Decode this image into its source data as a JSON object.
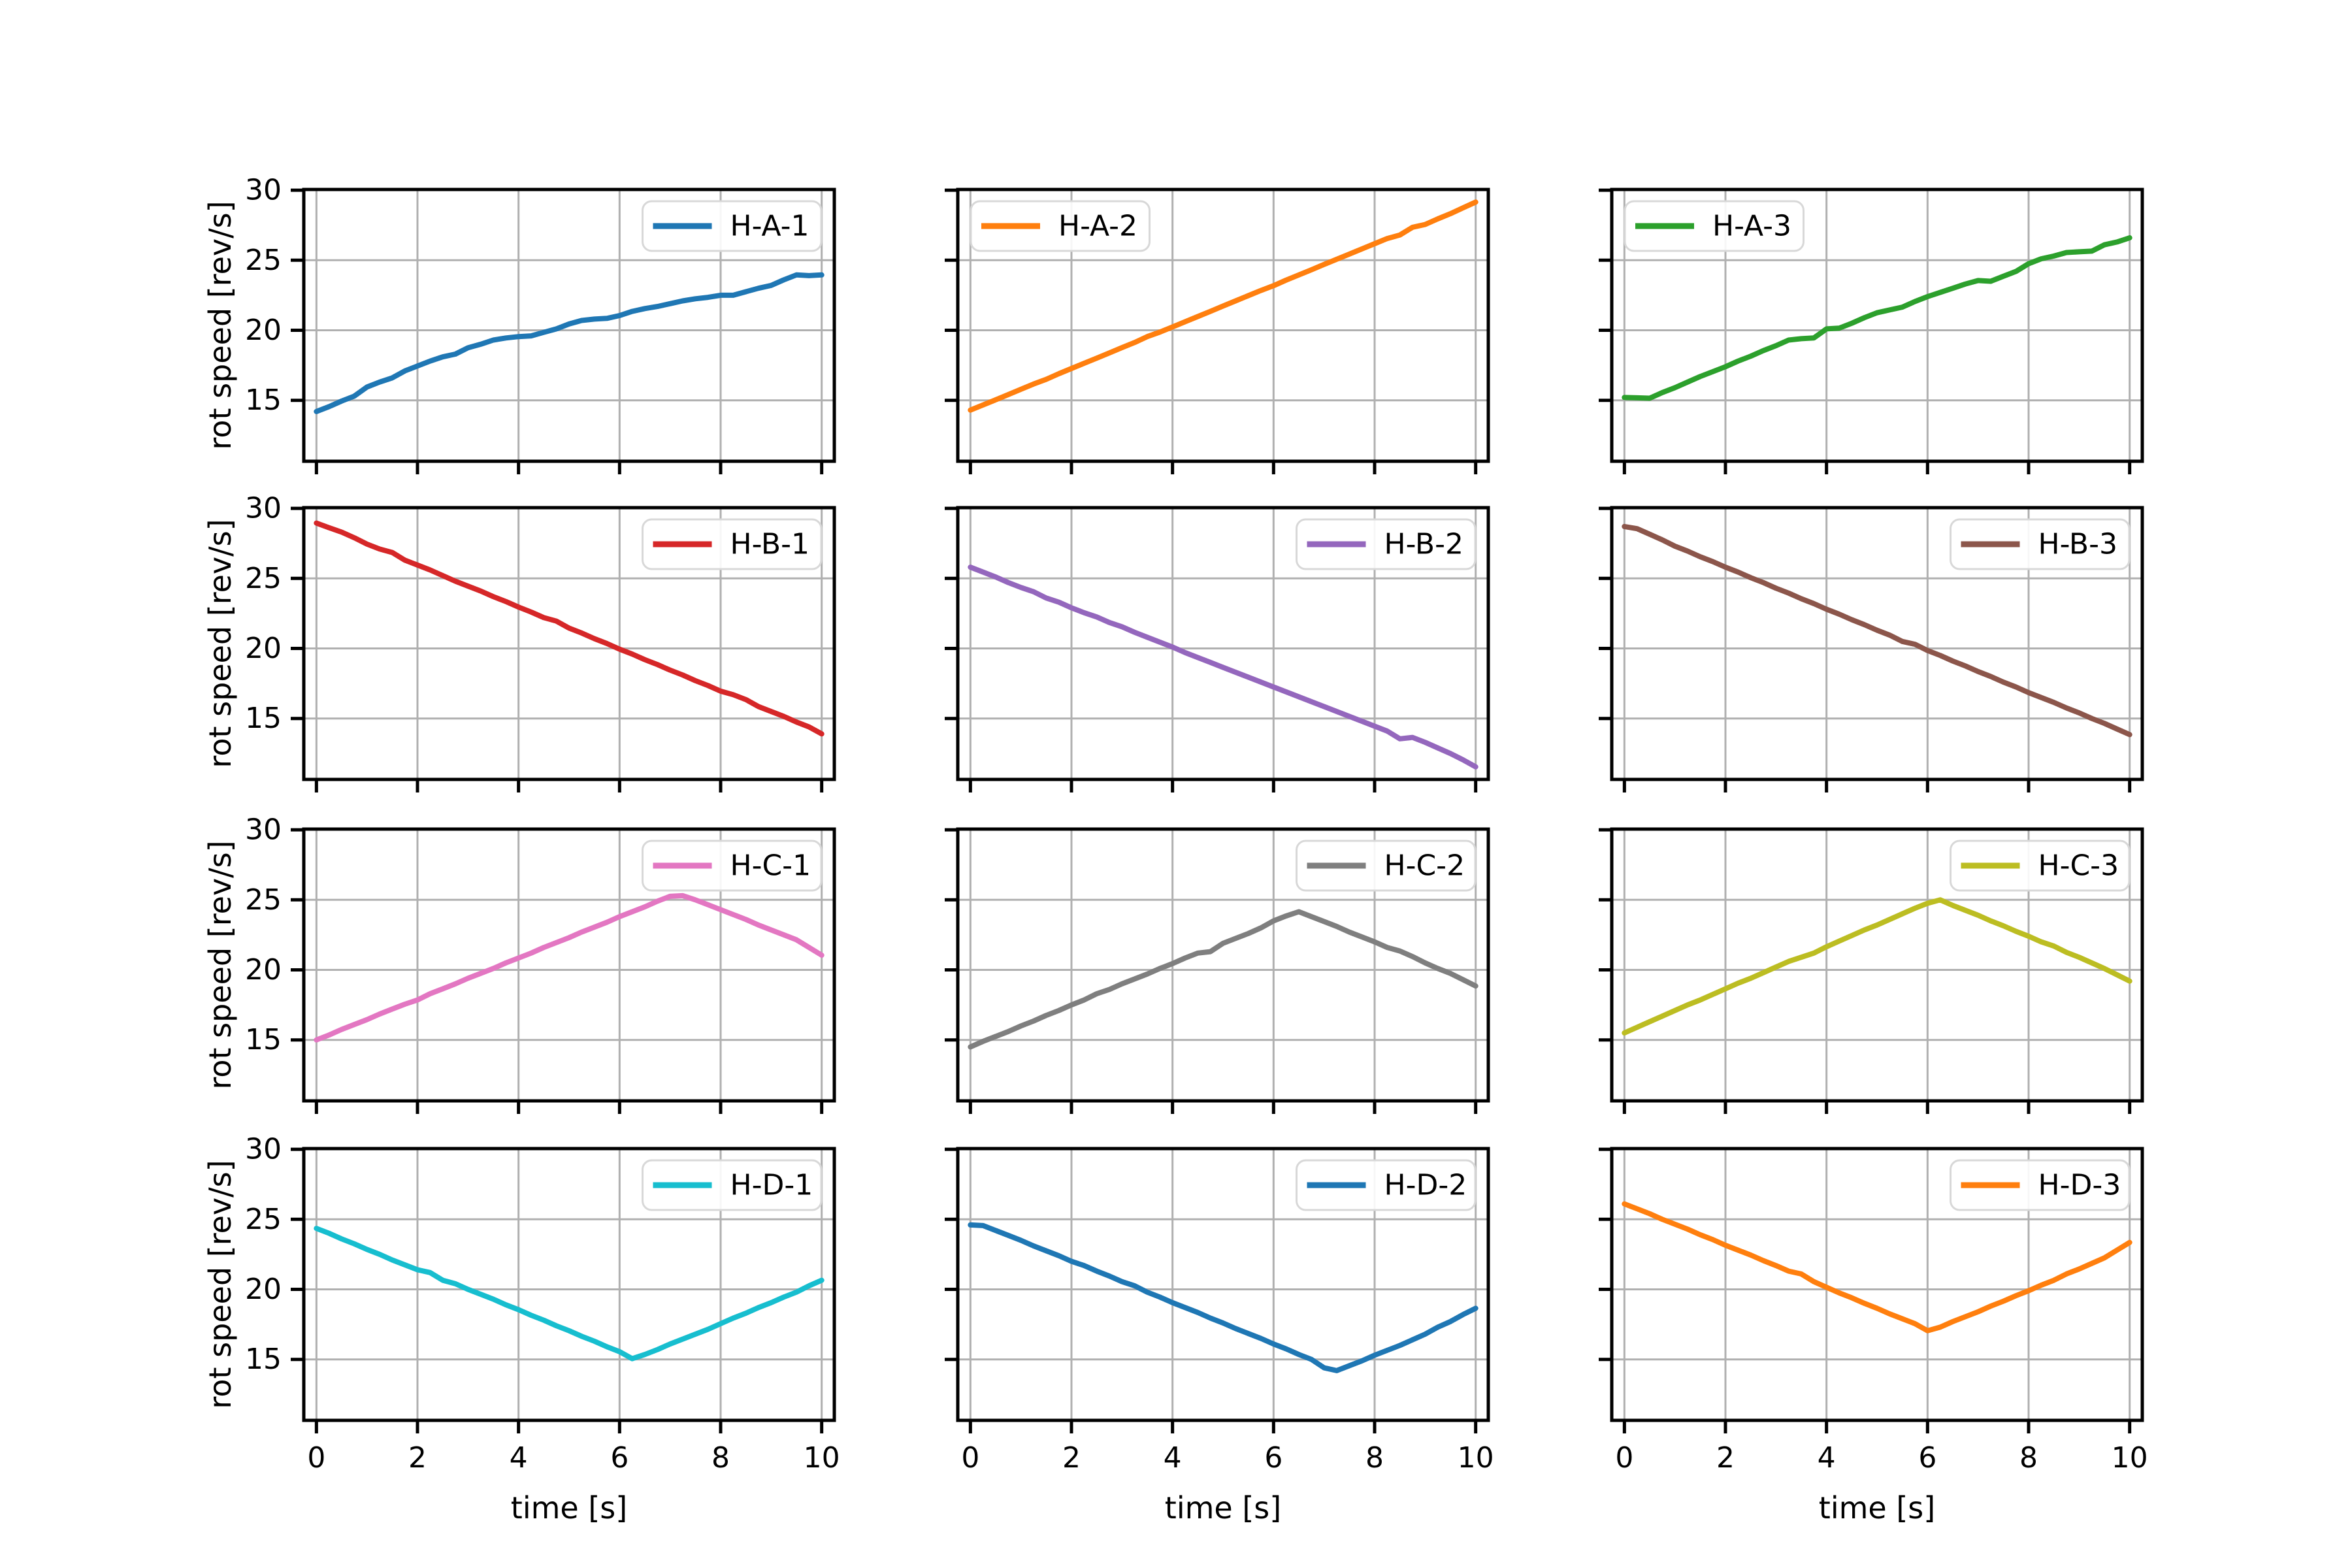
{
  "figure": {
    "background": "#ffffff",
    "grid_color": "#b0b0b0",
    "spine_color": "#000000",
    "text_color": "#000000",
    "legend_bg": "#ffffff",
    "legend_border": "#d8d8d8"
  },
  "axis": {
    "xlabel": "time [s]",
    "ylabel": "rot speed [rev/s]",
    "xticks": [
      0,
      2,
      4,
      6,
      8,
      10
    ],
    "yticks": [
      15,
      20,
      25,
      30
    ]
  },
  "chart_data": {
    "type": "line",
    "grid": true,
    "rows": 4,
    "cols": 3,
    "xlabel": "time [s]",
    "ylabel": "rot speed [rev/s]",
    "xlim": [
      -0.25,
      10.25
    ],
    "ylim": [
      10.65,
      30.05
    ],
    "xticks": [
      0,
      2,
      4,
      6,
      8,
      10
    ],
    "yticks": [
      15,
      20,
      25,
      30
    ],
    "x_start": 0,
    "x_step": 0.25,
    "subplots": [
      {
        "row": 0,
        "col": 0,
        "label": "H-A-1",
        "color": "#1f77b4",
        "legend_loc": "upper right",
        "y": [
          14.2,
          14.55,
          14.95,
          15.3,
          15.95,
          16.3,
          16.6,
          17.1,
          17.45,
          17.8,
          18.1,
          18.3,
          18.75,
          19.0,
          19.3,
          19.45,
          19.55,
          19.6,
          19.85,
          20.1,
          20.45,
          20.7,
          20.8,
          20.85,
          21.05,
          21.35,
          21.55,
          21.7,
          21.9,
          22.1,
          22.25,
          22.35,
          22.5,
          22.5,
          22.75,
          23.0,
          23.2,
          23.6,
          23.95,
          23.9,
          23.95
        ]
      },
      {
        "row": 0,
        "col": 1,
        "label": "H-A-2",
        "color": "#ff7f0e",
        "legend_loc": "upper left",
        "y": [
          14.3,
          14.67,
          15.04,
          15.41,
          15.79,
          16.16,
          16.5,
          16.9,
          17.27,
          17.64,
          18.01,
          18.38,
          18.76,
          19.13,
          19.55,
          19.87,
          20.24,
          20.61,
          20.98,
          21.35,
          21.73,
          22.1,
          22.47,
          22.84,
          23.18,
          23.58,
          23.95,
          24.32,
          24.7,
          25.07,
          25.44,
          25.81,
          26.18,
          26.55,
          26.8,
          27.35,
          27.55,
          27.95,
          28.32,
          28.74,
          29.15
        ]
      },
      {
        "row": 0,
        "col": 2,
        "label": "H-A-3",
        "color": "#2ca02c",
        "legend_loc": "upper left",
        "y": [
          15.2,
          15.18,
          15.15,
          15.55,
          15.9,
          16.3,
          16.7,
          17.05,
          17.4,
          17.8,
          18.15,
          18.55,
          18.9,
          19.3,
          19.4,
          19.45,
          20.1,
          20.15,
          20.5,
          20.9,
          21.25,
          21.45,
          21.65,
          22.05,
          22.4,
          22.7,
          23.0,
          23.3,
          23.55,
          23.5,
          23.85,
          24.2,
          24.75,
          25.1,
          25.3,
          25.55,
          25.6,
          25.65,
          26.1,
          26.3,
          26.6
        ]
      },
      {
        "row": 1,
        "col": 0,
        "label": "H-B-1",
        "color": "#d62728",
        "legend_loc": "upper right",
        "y": [
          28.95,
          28.62,
          28.3,
          27.9,
          27.45,
          27.1,
          26.85,
          26.3,
          25.95,
          25.6,
          25.2,
          24.8,
          24.45,
          24.1,
          23.7,
          23.35,
          22.95,
          22.6,
          22.2,
          21.95,
          21.45,
          21.1,
          20.7,
          20.35,
          19.95,
          19.6,
          19.2,
          18.85,
          18.45,
          18.1,
          17.7,
          17.35,
          16.95,
          16.7,
          16.35,
          15.85,
          15.5,
          15.15,
          14.75,
          14.4,
          13.9
        ]
      },
      {
        "row": 1,
        "col": 1,
        "label": "H-B-2",
        "color": "#9467bd",
        "legend_loc": "upper right",
        "y": [
          25.8,
          25.45,
          25.1,
          24.7,
          24.35,
          24.05,
          23.6,
          23.3,
          22.9,
          22.55,
          22.25,
          21.85,
          21.55,
          21.15,
          20.8,
          20.45,
          20.1,
          19.7,
          19.35,
          19.0,
          18.65,
          18.3,
          17.95,
          17.6,
          17.25,
          16.9,
          16.55,
          16.2,
          15.85,
          15.5,
          15.15,
          14.8,
          14.45,
          14.1,
          13.55,
          13.65,
          13.3,
          12.9,
          12.5,
          12.05,
          11.55
        ]
      },
      {
        "row": 1,
        "col": 2,
        "label": "H-B-3",
        "color": "#8c564b",
        "legend_loc": "upper right",
        "y": [
          28.7,
          28.55,
          28.15,
          27.75,
          27.3,
          26.95,
          26.55,
          26.2,
          25.8,
          25.45,
          25.05,
          24.7,
          24.3,
          23.95,
          23.55,
          23.2,
          22.8,
          22.45,
          22.05,
          21.7,
          21.3,
          20.95,
          20.5,
          20.3,
          19.85,
          19.5,
          19.1,
          18.75,
          18.35,
          18.0,
          17.6,
          17.25,
          16.85,
          16.5,
          16.15,
          15.75,
          15.4,
          15.0,
          14.65,
          14.25,
          13.85
        ]
      },
      {
        "row": 2,
        "col": 0,
        "label": "H-C-1",
        "color": "#e377c2",
        "legend_loc": "upper right",
        "y": [
          15.0,
          15.35,
          15.75,
          16.1,
          16.45,
          16.85,
          17.2,
          17.55,
          17.85,
          18.3,
          18.65,
          19.0,
          19.4,
          19.75,
          20.1,
          20.5,
          20.85,
          21.2,
          21.6,
          21.95,
          22.3,
          22.7,
          23.05,
          23.4,
          23.8,
          24.15,
          24.5,
          24.9,
          25.25,
          25.3,
          25.0,
          24.65,
          24.3,
          23.95,
          23.6,
          23.2,
          22.85,
          22.5,
          22.15,
          21.6,
          21.05
        ]
      },
      {
        "row": 2,
        "col": 1,
        "label": "H-C-2",
        "color": "#7f7f7f",
        "legend_loc": "upper right",
        "y": [
          14.5,
          14.9,
          15.25,
          15.6,
          16.0,
          16.35,
          16.75,
          17.1,
          17.5,
          17.85,
          18.3,
          18.6,
          19.0,
          19.35,
          19.7,
          20.1,
          20.45,
          20.85,
          21.2,
          21.3,
          21.9,
          22.25,
          22.6,
          23.0,
          23.5,
          23.85,
          24.15,
          23.8,
          23.45,
          23.1,
          22.7,
          22.35,
          22.0,
          21.6,
          21.35,
          20.95,
          20.5,
          20.1,
          19.75,
          19.3,
          18.85
        ]
      },
      {
        "row": 2,
        "col": 2,
        "label": "H-C-3",
        "color": "#bcbd22",
        "legend_loc": "upper right",
        "y": [
          15.5,
          15.9,
          16.3,
          16.7,
          17.1,
          17.5,
          17.85,
          18.25,
          18.65,
          19.05,
          19.4,
          19.8,
          20.2,
          20.6,
          20.9,
          21.2,
          21.65,
          22.05,
          22.45,
          22.85,
          23.2,
          23.6,
          24.0,
          24.4,
          24.75,
          25.0,
          24.6,
          24.25,
          23.9,
          23.5,
          23.15,
          22.75,
          22.4,
          22.0,
          21.7,
          21.25,
          20.9,
          20.5,
          20.1,
          19.65,
          19.2
        ]
      },
      {
        "row": 3,
        "col": 0,
        "label": "H-D-1",
        "color": "#17becf",
        "legend_loc": "upper right",
        "y": [
          24.35,
          24.0,
          23.6,
          23.25,
          22.85,
          22.5,
          22.1,
          21.75,
          21.4,
          21.2,
          20.65,
          20.4,
          20.0,
          19.65,
          19.3,
          18.9,
          18.55,
          18.15,
          17.8,
          17.4,
          17.05,
          16.65,
          16.3,
          15.9,
          15.55,
          15.05,
          15.35,
          15.7,
          16.1,
          16.45,
          16.8,
          17.15,
          17.55,
          17.95,
          18.3,
          18.7,
          19.05,
          19.45,
          19.8,
          20.25,
          20.65
        ]
      },
      {
        "row": 3,
        "col": 1,
        "label": "H-D-2",
        "color": "#1f77b4",
        "legend_loc": "upper right",
        "y": [
          24.6,
          24.55,
          24.2,
          23.85,
          23.5,
          23.1,
          22.75,
          22.4,
          22.0,
          21.7,
          21.3,
          20.95,
          20.55,
          20.25,
          19.8,
          19.45,
          19.05,
          18.7,
          18.35,
          17.95,
          17.6,
          17.2,
          16.85,
          16.5,
          16.1,
          15.75,
          15.35,
          15.0,
          14.4,
          14.2,
          14.55,
          14.9,
          15.3,
          15.65,
          16.0,
          16.4,
          16.8,
          17.3,
          17.7,
          18.2,
          18.65
        ]
      },
      {
        "row": 3,
        "col": 2,
        "label": "H-D-3",
        "color": "#ff7f0e",
        "legend_loc": "upper right",
        "y": [
          26.1,
          25.75,
          25.4,
          25.0,
          24.65,
          24.3,
          23.9,
          23.55,
          23.15,
          22.8,
          22.45,
          22.05,
          21.7,
          21.3,
          21.1,
          20.55,
          20.15,
          19.75,
          19.4,
          19.0,
          18.65,
          18.25,
          17.9,
          17.55,
          17.05,
          17.3,
          17.7,
          18.05,
          18.4,
          18.8,
          19.15,
          19.55,
          19.9,
          20.3,
          20.65,
          21.1,
          21.45,
          21.85,
          22.25,
          22.8,
          23.35
        ]
      }
    ]
  }
}
